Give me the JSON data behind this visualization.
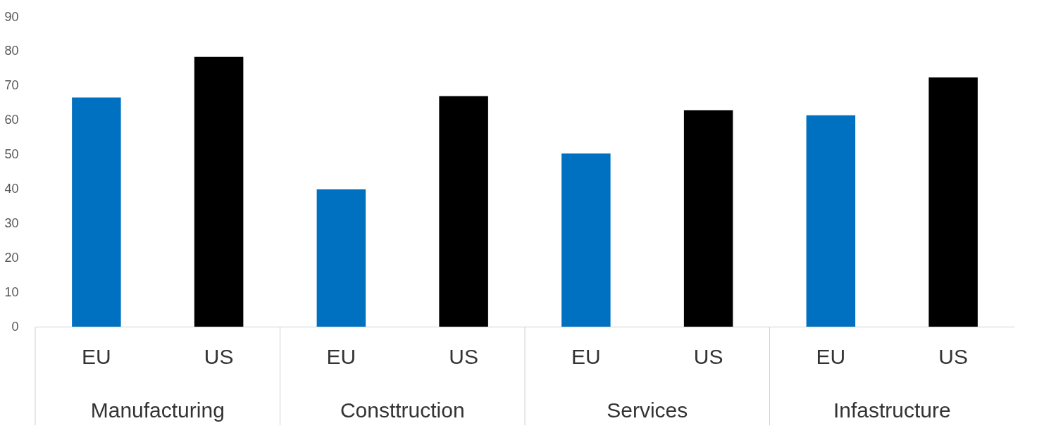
{
  "chart_data": {
    "type": "bar",
    "categories": [
      "EU",
      "US",
      "EU",
      "US",
      "EU",
      "US",
      "EU",
      "US"
    ],
    "values": [
      66.6,
      78.4,
      39.9,
      67.0,
      50.3,
      62.9,
      61.4,
      72.4
    ],
    "colors": [
      "#0070c0",
      "#000000",
      "#0070c0",
      "#000000",
      "#0070c0",
      "#000000",
      "#0070c0",
      "#000000"
    ],
    "ylim": [
      0,
      90
    ],
    "yticks": [
      0,
      10,
      20,
      30,
      40,
      50,
      60,
      70,
      80,
      90
    ],
    "annotations": [
      "Manufacturing",
      "Consttruction",
      "Services",
      "Infastructure"
    ]
  }
}
